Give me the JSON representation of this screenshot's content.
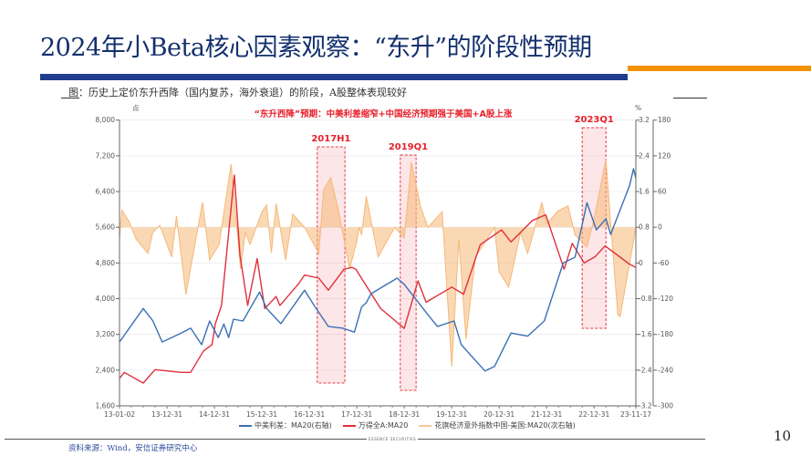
{
  "header": {
    "title": "2024年小Beta核心因素观察：“东升”的阶段性预期",
    "subtitle": "图：历史上定价东升西降（国内复苏，海外衰退）的阶段，A股整体表现较好"
  },
  "colors": {
    "title": "#13306e",
    "bar_blue": "#1f3d8c",
    "bar_orange": "#f39200",
    "series_blue": "#3a6fb5",
    "series_red": "#e0303a",
    "series_orange": "#f5b877",
    "highlight": "#e8353f"
  },
  "chart_data": {
    "type": "line",
    "annotation": "“东升西降”预期：中美利差缩窄+中国经济预期强于美国+A股上涨",
    "left_axis": {
      "unit": "点",
      "range": [
        1600,
        8000
      ],
      "ticks": [
        "1,600",
        "2,400",
        "3,200",
        "4,000",
        "4,800",
        "5,600",
        "6,400",
        "7,200",
        "8,000"
      ]
    },
    "right_axis": {
      "unit": "%",
      "range": [
        -3.2,
        3.2
      ],
      "ticks": [
        "-3.2",
        "-2.4",
        "-1.6",
        "-0.8",
        "0",
        "0.8",
        "1.6",
        "2.4",
        "3.2"
      ]
    },
    "right_axis2": {
      "range": [
        -300,
        180
      ],
      "ticks": [
        "-300",
        "-240",
        "-180",
        "-120",
        "-60",
        "0",
        "60",
        "120",
        "180"
      ]
    },
    "x_ticks": [
      "13-01-02",
      "13-12-31",
      "14-12-31",
      "15-12-31",
      "16-12-31",
      "17-12-31",
      "18-12-31",
      "19-12-31",
      "20-12-31",
      "21-12-31",
      "22-12-31",
      "23-11-17"
    ],
    "x_range": [
      "2013-01-02",
      "2023-11-17"
    ],
    "grid": true,
    "legend_position": "bottom",
    "highlights": [
      {
        "label": "2017H1",
        "from": "2017-03",
        "to": "2017-10"
      },
      {
        "label": "2019Q1",
        "from": "2018-12",
        "to": "2019-04"
      },
      {
        "label": "2023Q1",
        "from": "2022-10",
        "to": "2023-04"
      }
    ],
    "series": [
      {
        "name": "中美利差：MA20(右轴)",
        "axis": "right",
        "color": "#3a6fb5",
        "points": [
          [
            "2013.00",
            -1.77
          ],
          [
            "2013.50",
            -1.02
          ],
          [
            "2013.70",
            -1.29
          ],
          [
            "2013.90",
            -1.77
          ],
          [
            "2014.30",
            -1.57
          ],
          [
            "2014.50",
            -1.46
          ],
          [
            "2014.73",
            -1.83
          ],
          [
            "2014.90",
            -1.3
          ],
          [
            "2015.08",
            -1.67
          ],
          [
            "2015.20",
            -1.37
          ],
          [
            "2015.30",
            -1.67
          ],
          [
            "2015.40",
            -1.26
          ],
          [
            "2015.60",
            -1.3
          ],
          [
            "2015.95",
            -0.65
          ],
          [
            "2016.10",
            -1.02
          ],
          [
            "2016.40",
            -1.36
          ],
          [
            "2016.90",
            -0.61
          ],
          [
            "2017.10",
            -0.95
          ],
          [
            "2017.40",
            -1.42
          ],
          [
            "2017.70",
            -1.46
          ],
          [
            "2017.95",
            -1.55
          ],
          [
            "2018.10",
            -0.99
          ],
          [
            "2018.20",
            -0.89
          ],
          [
            "2018.30",
            -0.69
          ],
          [
            "2018.85",
            -0.34
          ],
          [
            "2019.00",
            -0.48
          ],
          [
            "2019.50",
            -1.16
          ],
          [
            "2019.70",
            -1.42
          ],
          [
            "2020.05",
            -1.3
          ],
          [
            "2020.20",
            -1.83
          ],
          [
            "2020.70",
            -2.42
          ],
          [
            "2020.90",
            -2.32
          ],
          [
            "2021.25",
            -1.57
          ],
          [
            "2021.60",
            -1.64
          ],
          [
            "2021.95",
            -1.3
          ],
          [
            "2022.35",
            0.0
          ],
          [
            "2022.60",
            0.13
          ],
          [
            "2022.85",
            1.35
          ],
          [
            "2023.05",
            0.74
          ],
          [
            "2023.25",
            0.99
          ],
          [
            "2023.35",
            0.64
          ],
          [
            "2023.75",
            1.74
          ],
          [
            "2023.83",
            2.11
          ],
          [
            "2023.88",
            1.9
          ]
        ]
      },
      {
        "name": "万得全A:MA20",
        "axis": "left",
        "color": "#e0303a",
        "points": [
          [
            "2013.00",
            2212
          ],
          [
            "2013.10",
            2350
          ],
          [
            "2013.50",
            2110
          ],
          [
            "2013.75",
            2410
          ],
          [
            "2014.30",
            2350
          ],
          [
            "2014.50",
            2350
          ],
          [
            "2014.77",
            2830
          ],
          [
            "2014.95",
            2970
          ],
          [
            "2015.02",
            3440
          ],
          [
            "2015.15",
            3850
          ],
          [
            "2015.42",
            6770
          ],
          [
            "2015.54",
            4970
          ],
          [
            "2015.70",
            3850
          ],
          [
            "2015.90",
            4900
          ],
          [
            "2016.06",
            3780
          ],
          [
            "2016.30",
            4050
          ],
          [
            "2016.38",
            3850
          ],
          [
            "2016.77",
            4330
          ],
          [
            "2016.90",
            4530
          ],
          [
            "2017.20",
            4460
          ],
          [
            "2017.40",
            4190
          ],
          [
            "2017.73",
            4660
          ],
          [
            "2017.90",
            4700
          ],
          [
            "2017.98",
            4661
          ],
          [
            "2018.50",
            3784
          ],
          [
            "2019.00",
            3335
          ],
          [
            "2019.29",
            4396
          ],
          [
            "2019.46",
            3920
          ],
          [
            "2020.00",
            4260
          ],
          [
            "2020.25",
            4100
          ],
          [
            "2020.60",
            5210
          ],
          [
            "2021.05",
            5540
          ],
          [
            "2021.25",
            5270
          ],
          [
            "2021.70",
            5750
          ],
          [
            "2021.98",
            5880
          ],
          [
            "2022.37",
            4660
          ],
          [
            "2022.54",
            5240
          ],
          [
            "2022.79",
            4800
          ],
          [
            "2023.02",
            4940
          ],
          [
            "2023.23",
            5180
          ],
          [
            "2023.50",
            4970
          ],
          [
            "2023.75",
            4770
          ],
          [
            "2023.88",
            4700
          ]
        ]
      },
      {
        "name": "花旗经济意外指数中国-美国:MA20(次右轴)",
        "axis": "right2",
        "color": "#f5b877",
        "points": [
          [
            "2013.00",
            -20
          ],
          [
            "2013.05",
            29
          ],
          [
            "2013.20",
            10
          ],
          [
            "2013.35",
            -20
          ],
          [
            "2013.60",
            -44
          ],
          [
            "2013.70",
            -9
          ],
          [
            "2013.85",
            3
          ],
          [
            "2014.10",
            -50
          ],
          [
            "2014.20",
            19
          ],
          [
            "2014.40",
            -113
          ],
          [
            "2014.75",
            42
          ],
          [
            "2014.90",
            -55
          ],
          [
            "2015.10",
            -29
          ],
          [
            "2015.35",
            106
          ],
          [
            "2015.55",
            -70
          ],
          [
            "2015.65",
            -9
          ],
          [
            "2015.75",
            -29
          ],
          [
            "2016.00",
            26
          ],
          [
            "2016.10",
            37
          ],
          [
            "2016.20",
            -43
          ],
          [
            "2016.30",
            40
          ],
          [
            "2016.50",
            -55
          ],
          [
            "2016.65",
            22
          ],
          [
            "2016.90",
            0
          ],
          [
            "2017.20",
            -44
          ],
          [
            "2017.30",
            63
          ],
          [
            "2017.45",
            83
          ],
          [
            "2017.60",
            33
          ],
          [
            "2017.85",
            -70
          ],
          [
            "2018.00",
            -24
          ],
          [
            "2018.05",
            0
          ],
          [
            "2018.10",
            -13
          ],
          [
            "2018.20",
            52
          ],
          [
            "2018.45",
            -50
          ],
          [
            "2018.80",
            0
          ],
          [
            "2019.00",
            -18
          ],
          [
            "2019.15",
            109
          ],
          [
            "2019.35",
            33
          ],
          [
            "2019.50",
            0
          ],
          [
            "2019.80",
            26
          ],
          [
            "2020.00",
            -234
          ],
          [
            "2020.15",
            -20
          ],
          [
            "2020.30",
            -188
          ],
          [
            "2020.50",
            -50
          ],
          [
            "2020.90",
            0
          ],
          [
            "2021.00",
            -75
          ],
          [
            "2021.20",
            -101
          ],
          [
            "2021.45",
            -9
          ],
          [
            "2021.60",
            -44
          ],
          [
            "2021.90",
            42
          ],
          [
            "2022.00",
            6
          ],
          [
            "2022.25",
            28
          ],
          [
            "2022.45",
            36
          ],
          [
            "2022.60",
            -13
          ],
          [
            "2022.85",
            -33
          ],
          [
            "2023.00",
            14
          ],
          [
            "2023.25",
            114
          ],
          [
            "2023.35",
            6
          ],
          [
            "2023.50",
            -147
          ],
          [
            "2023.55",
            -150
          ],
          [
            "2023.88",
            -1
          ]
        ]
      }
    ]
  },
  "footer": {
    "brand": "ESSENCE SECURITIES",
    "source": "资料来源：Wind，安信证券研究中心",
    "page_number": "10"
  }
}
